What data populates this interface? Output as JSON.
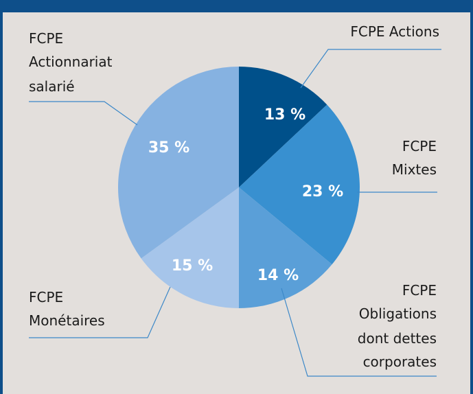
{
  "chart_data": {
    "type": "pie",
    "categories": [
      "FCPE Actions",
      "FCPE\nMixtes",
      "FCPE\nObligations\ndont dettes\ncorporates",
      "FCPE\nMonétaires",
      "FCPE\nActionnariat\nsalarié"
    ],
    "values": [
      13,
      23,
      14,
      15,
      35
    ],
    "value_labels": [
      "13 %",
      "23 %",
      "14 %",
      "15 %",
      "35 %"
    ],
    "colors": [
      "#00508a",
      "#3890d0",
      "#5a9fd8",
      "#a6c5ea",
      "#86b2e1"
    ]
  }
}
